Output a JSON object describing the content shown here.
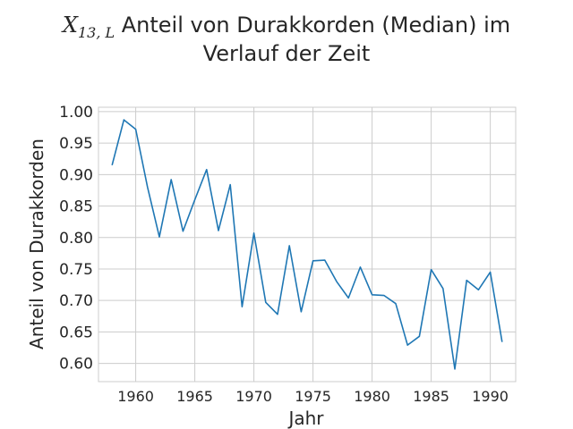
{
  "chart_data": {
    "type": "line",
    "title_math": "X",
    "title_math_sub": "13, L",
    "title_line1": "Anteil von Durakkorden (Median) im",
    "title_line2": "Verlauf der Zeit",
    "xlabel": "Jahr",
    "ylabel": "Anteil von Durakkorden",
    "xlim": [
      1956.85,
      1992.15
    ],
    "ylim": [
      0.571,
      1.007
    ],
    "x_ticks": [
      1960,
      1965,
      1970,
      1975,
      1980,
      1985,
      1990
    ],
    "y_ticks": [
      0.6,
      0.65,
      0.7,
      0.75,
      0.8,
      0.85,
      0.9,
      0.95,
      1.0
    ],
    "grid": true,
    "series": [
      {
        "color": "#1f77b4",
        "x": [
          1958,
          1959,
          1960,
          1961,
          1962,
          1963,
          1964,
          1965,
          1966,
          1967,
          1968,
          1969,
          1970,
          1971,
          1972,
          1973,
          1974,
          1975,
          1976,
          1977,
          1978,
          1979,
          1980,
          1981,
          1982,
          1983,
          1984,
          1985,
          1986,
          1987,
          1988,
          1989,
          1990,
          1991
        ],
        "y": [
          0.915,
          0.987,
          0.972,
          0.88,
          0.801,
          0.892,
          0.81,
          0.86,
          0.908,
          0.811,
          0.884,
          0.69,
          0.807,
          0.697,
          0.678,
          0.787,
          0.682,
          0.763,
          0.764,
          0.73,
          0.704,
          0.753,
          0.709,
          0.708,
          0.695,
          0.629,
          0.643,
          0.749,
          0.719,
          0.591,
          0.732,
          0.717,
          0.745,
          0.634
        ]
      }
    ]
  }
}
